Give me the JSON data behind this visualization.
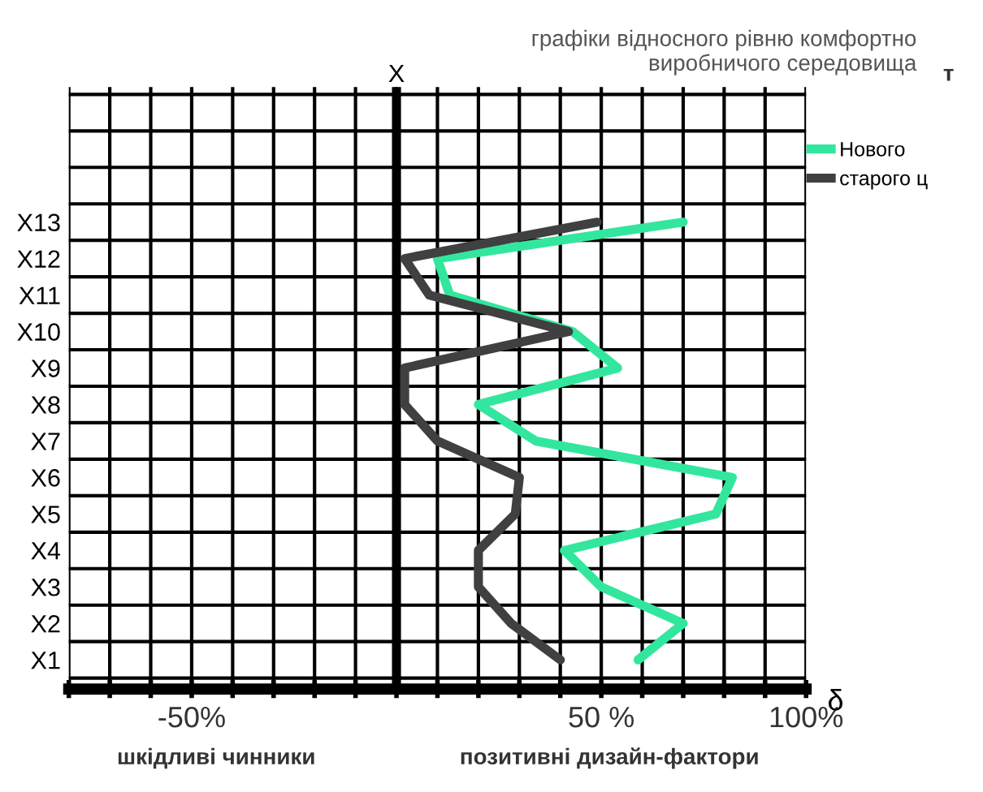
{
  "chart_data": {
    "type": "line",
    "orientation": "horizontal",
    "title": "графіки відносного рівню комфортно\nвиробничого середовища",
    "xlabel": "δ",
    "ylabel": "X",
    "categories": [
      "X13",
      "X12",
      "X11",
      "X10",
      "X9",
      "X8",
      "X7",
      "X6",
      "X5",
      "X4",
      "X3",
      "X2",
      "X1"
    ],
    "series": [
      {
        "name": "Нового",
        "color": "#33e69e",
        "values": [
          70,
          10,
          13,
          43,
          54,
          20,
          34,
          82,
          78,
          41,
          50,
          70,
          59
        ]
      },
      {
        "name": "старого ц",
        "color": "#404040",
        "values": [
          49,
          2,
          8,
          42,
          2,
          2,
          10,
          30,
          29,
          20,
          20,
          28,
          40
        ]
      }
    ],
    "xlim": [
      -80,
      100
    ],
    "xticks": [
      {
        "value": -80,
        "label": null
      },
      {
        "value": -70,
        "label": null
      },
      {
        "value": -60,
        "label": null
      },
      {
        "value": -50,
        "label": "-50%"
      },
      {
        "value": -40,
        "label": null
      },
      {
        "value": -30,
        "label": null
      },
      {
        "value": -20,
        "label": null
      },
      {
        "value": -10,
        "label": null
      },
      {
        "value": 0,
        "label": null
      },
      {
        "value": 10,
        "label": null
      },
      {
        "value": 20,
        "label": null
      },
      {
        "value": 30,
        "label": null
      },
      {
        "value": 40,
        "label": null
      },
      {
        "value": 50,
        "label": "50 %"
      },
      {
        "value": 60,
        "label": null
      },
      {
        "value": 70,
        "label": null
      },
      {
        "value": 80,
        "label": null
      },
      {
        "value": 90,
        "label": null
      },
      {
        "value": 100,
        "label": "100%"
      }
    ],
    "grid": true,
    "legend": "top right",
    "marker": "none",
    "line_style": "solid",
    "annotations": [
      "т",
      "шкідливі чинники",
      "позитивні дизайн-фактори"
    ]
  }
}
